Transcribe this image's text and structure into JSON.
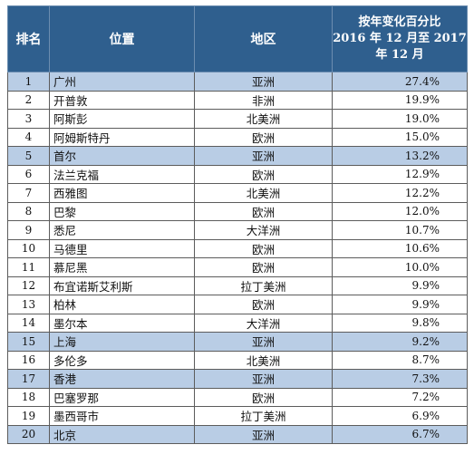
{
  "header": {
    "rank": "排名",
    "location": "位置",
    "region": "地区",
    "change_line1": "按年变化百分比",
    "change_line2": "2016 年 12 月至 2017",
    "change_line3": "年 12 月"
  },
  "rows": [
    {
      "rank": "1",
      "city": "广州",
      "region": "亚洲",
      "change": "27.4%",
      "highlight": true
    },
    {
      "rank": "2",
      "city": "开普敦",
      "region": "非洲",
      "change": "19.9%",
      "highlight": false
    },
    {
      "rank": "3",
      "city": "阿斯彭",
      "region": "北美洲",
      "change": "19.0%",
      "highlight": false
    },
    {
      "rank": "4",
      "city": "阿姆斯特丹",
      "region": "欧洲",
      "change": "15.0%",
      "highlight": false
    },
    {
      "rank": "5",
      "city": "首尔",
      "region": "亚洲",
      "change": "13.2%",
      "highlight": true
    },
    {
      "rank": "6",
      "city": "法兰克福",
      "region": "欧洲",
      "change": "12.9%",
      "highlight": false
    },
    {
      "rank": "7",
      "city": "西雅图",
      "region": "北美洲",
      "change": "12.2%",
      "highlight": false
    },
    {
      "rank": "8",
      "city": "巴黎",
      "region": "欧洲",
      "change": "12.0%",
      "highlight": false
    },
    {
      "rank": "9",
      "city": "悉尼",
      "region": "大洋洲",
      "change": "10.7%",
      "highlight": false
    },
    {
      "rank": "10",
      "city": "马德里",
      "region": "欧洲",
      "change": "10.6%",
      "highlight": false
    },
    {
      "rank": "11",
      "city": "慕尼黑",
      "region": "欧洲",
      "change": "10.0%",
      "highlight": false
    },
    {
      "rank": "12",
      "city": "布宜诺斯艾利斯",
      "region": "拉丁美洲",
      "change": "9.9%",
      "highlight": false
    },
    {
      "rank": "13",
      "city": "柏林",
      "region": "欧洲",
      "change": "9.9%",
      "highlight": false
    },
    {
      "rank": "14",
      "city": "墨尔本",
      "region": "大洋洲",
      "change": "9.8%",
      "highlight": false
    },
    {
      "rank": "15",
      "city": "上海",
      "region": "亚洲",
      "change": "9.2%",
      "highlight": true
    },
    {
      "rank": "16",
      "city": "多伦多",
      "region": "北美洲",
      "change": "8.7%",
      "highlight": false
    },
    {
      "rank": "17",
      "city": "香港",
      "region": "亚洲",
      "change": "7.3%",
      "highlight": true
    },
    {
      "rank": "18",
      "city": "巴塞罗那",
      "region": "欧洲",
      "change": "7.2%",
      "highlight": false
    },
    {
      "rank": "19",
      "city": "墨西哥市",
      "region": "拉丁美洲",
      "change": "6.9%",
      "highlight": false
    },
    {
      "rank": "20",
      "city": "北京",
      "region": "亚洲",
      "change": "6.7%",
      "highlight": true
    }
  ],
  "colors": {
    "header_bg": "#2f5f8e",
    "highlight_row": "#b9cde5"
  }
}
